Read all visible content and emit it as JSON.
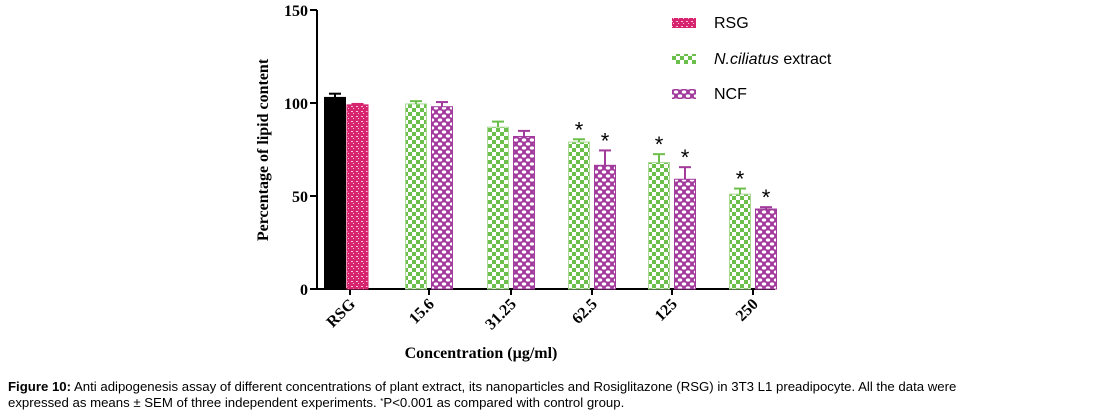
{
  "chart_data": {
    "type": "bar",
    "title": "",
    "xlabel": "Concentration (µg/ml)",
    "ylabel": "Percentage of lipid content",
    "ylim": [
      0,
      150
    ],
    "yticks": [
      0,
      50,
      100,
      150
    ],
    "categories": [
      "RSG",
      "15.6",
      "31.25",
      "62.5",
      "125",
      "250"
    ],
    "control_bar": {
      "name": "Control",
      "category": "RSG",
      "value": 103,
      "error": 2,
      "color": "#000000"
    },
    "series": [
      {
        "name": "RSG",
        "color": "#d6246e",
        "pattern": "brick",
        "values": [
          99,
          null,
          null,
          null,
          null,
          null
        ],
        "errors": [
          0.5,
          null,
          null,
          null,
          null,
          null
        ],
        "significant": [
          false,
          false,
          false,
          false,
          false,
          false
        ]
      },
      {
        "name": "N.ciliatus extract",
        "name_italic": "N.ciliatus",
        "name_rest": " extract",
        "color": "#6cbf4a",
        "pattern": "checker",
        "values": [
          null,
          99.5,
          87,
          79,
          68,
          51
        ],
        "errors": [
          null,
          1.5,
          3,
          1.5,
          4.5,
          3
        ],
        "significant": [
          false,
          false,
          false,
          true,
          true,
          true
        ]
      },
      {
        "name": "NCF",
        "color": "#a23b9c",
        "pattern": "crosshatch",
        "values": [
          null,
          98,
          82,
          66.5,
          59,
          43
        ],
        "errors": [
          null,
          2.5,
          3,
          8,
          6.5,
          1
        ],
        "significant": [
          false,
          false,
          false,
          true,
          true,
          true
        ]
      }
    ],
    "significance_marker": "*",
    "legend_position": "top-right",
    "grid": false
  },
  "caption": {
    "label": "Figure 10:",
    "text_line1": " Anti adipogenesis assay of different concentrations of plant extract, its nanoparticles and Rosiglitazone (RSG) in 3T3 L1 preadipocyte. All the data were",
    "text_line2_a": "expressed as means ± SEM of three independent experiments. ",
    "sup": "*",
    "text_line2_b": "P<0.001 as compared with control group."
  }
}
